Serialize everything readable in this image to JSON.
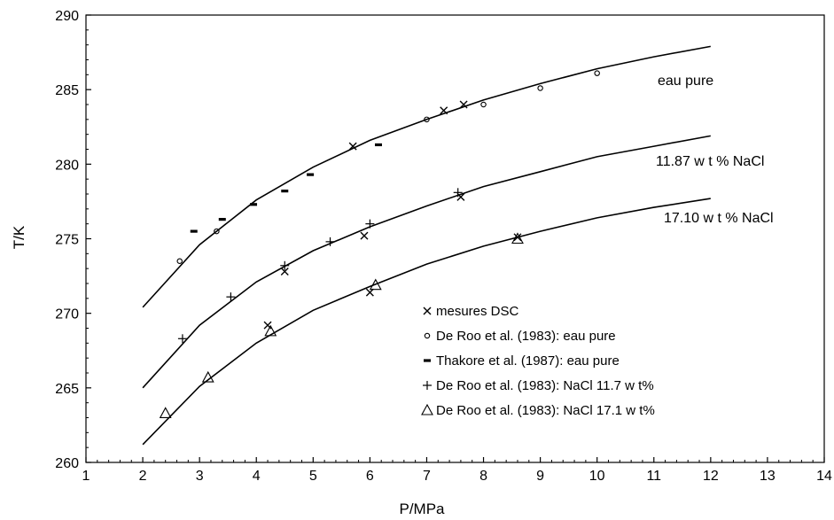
{
  "chart_data": {
    "type": "line",
    "title": "",
    "xlabel": "P/MPa",
    "ylabel": "T/K",
    "xlim": [
      1,
      14
    ],
    "ylim": [
      260,
      290
    ],
    "x_ticks": [
      "1",
      "2",
      "3",
      "4",
      "5",
      "6",
      "7",
      "8",
      "9",
      "10",
      "11",
      "12",
      "13",
      "14"
    ],
    "y_ticks": [
      "260",
      "265",
      "270",
      "275",
      "280",
      "285",
      "290"
    ],
    "grid": false,
    "legend_position": "bottom-right",
    "colors": {
      "line": "#000000",
      "background": "#ffffff"
    },
    "curves": [
      {
        "label": "eau pure",
        "x": [
          2,
          3,
          4,
          5,
          6,
          7,
          8,
          9,
          10,
          11,
          12
        ],
        "y": [
          270.4,
          274.6,
          277.6,
          279.8,
          281.6,
          283.0,
          284.3,
          285.4,
          286.4,
          287.2,
          287.9
        ]
      },
      {
        "label": "11.87 w t % NaCl",
        "x": [
          2,
          3,
          4,
          5,
          6,
          7,
          8,
          9,
          10,
          11,
          12
        ],
        "y": [
          265.0,
          269.2,
          272.1,
          274.2,
          275.8,
          277.2,
          278.5,
          279.5,
          280.5,
          281.2,
          281.9
        ]
      },
      {
        "label": "17.10  w t % NaCl",
        "x": [
          2,
          3,
          4,
          5,
          6,
          7,
          8,
          9,
          10,
          11,
          12
        ],
        "y": [
          261.2,
          265.1,
          268.0,
          270.2,
          271.8,
          273.3,
          274.5,
          275.5,
          276.4,
          277.1,
          277.7
        ]
      }
    ],
    "series": [
      {
        "name": "mesures DSC",
        "marker": "x",
        "x": [
          5.7,
          7.3,
          7.65,
          5.9,
          7.6,
          4.5,
          4.2,
          6.0,
          8.6
        ],
        "y": [
          281.2,
          283.6,
          284.0,
          275.2,
          277.8,
          272.8,
          269.2,
          271.4,
          275.1
        ]
      },
      {
        "name": "De Roo et al. (1983): eau pure",
        "marker": "circle",
        "x": [
          2.65,
          3.3,
          7.0,
          8.0,
          9.0,
          10.0
        ],
        "y": [
          273.5,
          275.5,
          283.0,
          284.0,
          285.1,
          286.1
        ]
      },
      {
        "name": "Thakore et al. (1987): eau pure",
        "marker": "dash",
        "x": [
          2.9,
          3.4,
          3.95,
          4.5,
          4.95,
          6.15
        ],
        "y": [
          275.5,
          276.3,
          277.3,
          278.2,
          279.3,
          281.3
        ]
      },
      {
        "name": "De Roo et al. (1983): NaCl  11.7 w t%",
        "marker": "plus",
        "x": [
          2.7,
          3.55,
          4.5,
          5.3,
          6.0,
          7.55
        ],
        "y": [
          268.3,
          271.1,
          273.2,
          274.8,
          276.0,
          278.1
        ]
      },
      {
        "name": "De Roo et al. (1983): NaCl  17.1 w t%",
        "marker": "triangle",
        "x": [
          2.4,
          3.15,
          4.25,
          6.1,
          8.6
        ],
        "y": [
          263.3,
          265.7,
          268.8,
          271.9,
          275.0
        ]
      }
    ]
  }
}
